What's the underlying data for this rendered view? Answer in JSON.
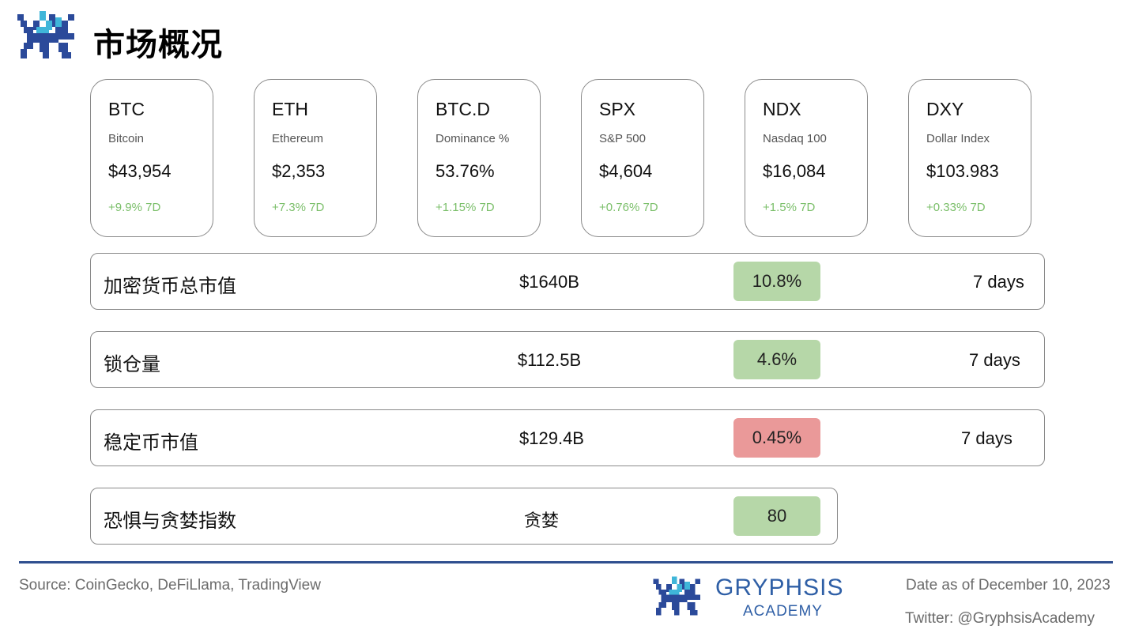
{
  "header": {
    "title": "市场概况",
    "logo_icon": "gryphon-pixel-logo-icon"
  },
  "cards": [
    {
      "symbol": "BTC",
      "name": "Bitcoin",
      "price": "$43,954",
      "change": "+9.9% 7D"
    },
    {
      "symbol": "ETH",
      "name": "Ethereum",
      "price": "$2,353",
      "change": "+7.3% 7D"
    },
    {
      "symbol": "BTC.D",
      "name": "Dominance %",
      "price": "53.76%",
      "change": "+1.15% 7D"
    },
    {
      "symbol": "SPX",
      "name": "S&P 500",
      "price": "$4,604",
      "change": "+0.76% 7D"
    },
    {
      "symbol": "NDX",
      "name": "Nasdaq 100",
      "price": "$16,084",
      "change": "+1.5% 7D"
    },
    {
      "symbol": "DXY",
      "name": "Dollar Index",
      "price": "$103.983",
      "change": "+0.33% 7D"
    }
  ],
  "rows": [
    {
      "label": "加密货币总市值",
      "value": "$1640B",
      "badge": "10.8%",
      "badge_color": "#b6d7a8",
      "period": "7 days"
    },
    {
      "label": "锁仓量",
      "value": "$112.5B",
      "badge": "4.6%",
      "badge_color": "#b6d7a8",
      "period": "7 days"
    },
    {
      "label": "稳定币市值",
      "value": "$129.4B",
      "badge": "0.45%",
      "badge_color": "#ea9999",
      "period": "7 days"
    },
    {
      "label": "恐惧与贪婪指数",
      "value": "贪婪",
      "badge": "80",
      "badge_color": "#b6d7a8"
    }
  ],
  "colors": {
    "positive": "#7bbf6a",
    "brand": "#2f5fa6",
    "divider": "#2f4f8f"
  },
  "footer": {
    "source": "Source: CoinGecko, DeFiLlama, TradingView",
    "brand_name": "GRYPHSIS",
    "brand_sub": "ACADEMY",
    "date": "Date as of December 10, 2023",
    "twitter": "Twitter: @GryphsisAcademy"
  }
}
